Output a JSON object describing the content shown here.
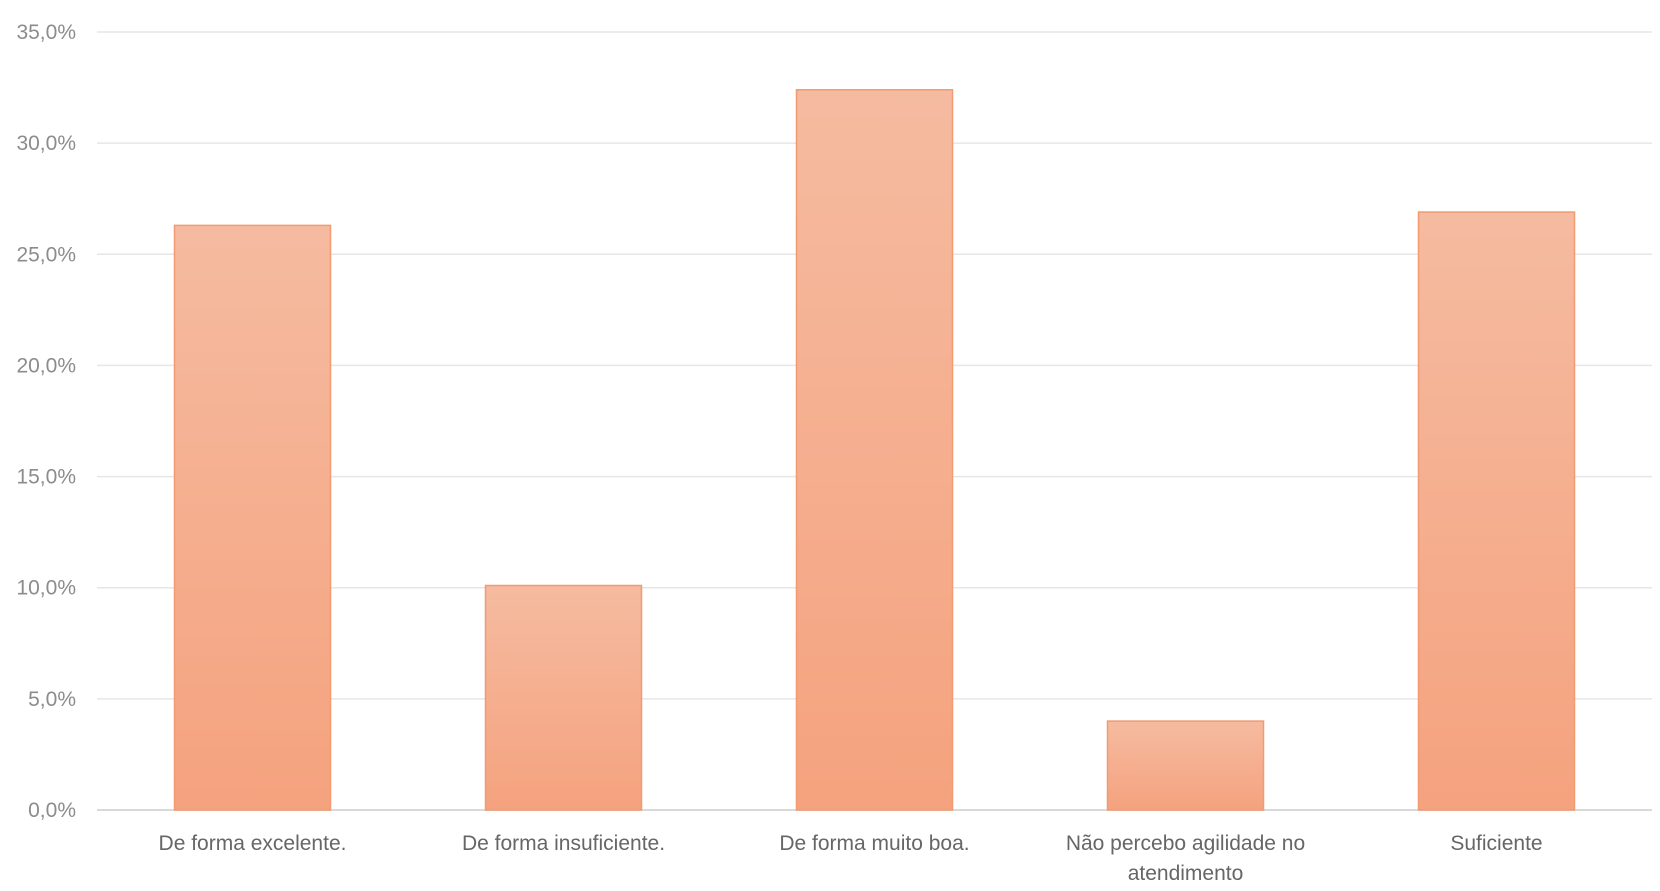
{
  "chart_data": {
    "type": "bar",
    "title": "",
    "xlabel": "",
    "ylabel": "",
    "categories": [
      [
        "De forma excelente."
      ],
      [
        "De forma insuficiente."
      ],
      [
        "De forma muito boa."
      ],
      [
        "Não percebo agilidade no",
        "atendimento"
      ],
      [
        "Suficiente"
      ]
    ],
    "values": [
      26.3,
      10.1,
      32.4,
      4.0,
      26.9
    ],
    "unit": "%",
    "ylim": [
      0,
      35
    ],
    "yticks": [
      "0,0%",
      "5,0%",
      "10,0%",
      "15,0%",
      "20,0%",
      "25,0%",
      "30,0%",
      "35,0%"
    ],
    "grid": true,
    "legend": "none",
    "colors": {
      "bar_top": "#f5bba0",
      "bar_bottom": "#f5a27e",
      "bar_edge": "#f29a72"
    }
  }
}
